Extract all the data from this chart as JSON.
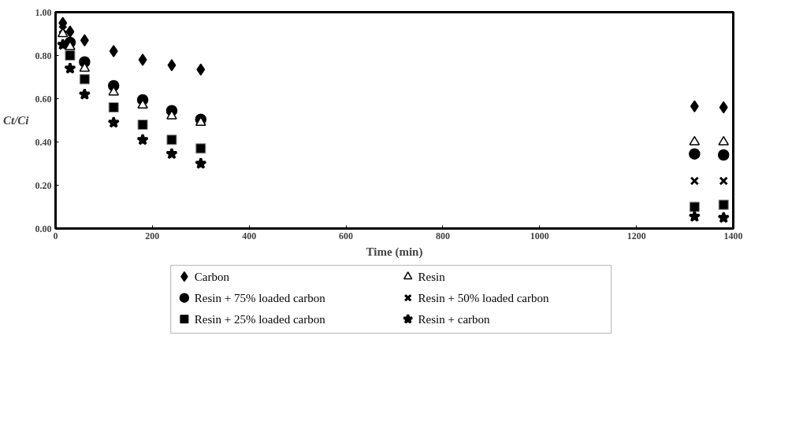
{
  "chart_data": {
    "type": "scatter",
    "xlabel": "Time (min)",
    "ylabel": "Ct/Ci",
    "x": [
      15,
      30,
      60,
      120,
      180,
      240,
      300,
      1320,
      1380
    ],
    "series": [
      {
        "name": "Carbon",
        "color": "#000000",
        "marker": "diamond",
        "values": [
          0.95,
          0.91,
          0.87,
          0.82,
          0.78,
          0.755,
          0.735,
          0.565,
          0.56
        ]
      },
      {
        "name": "Resin",
        "color": "#000000",
        "marker": "triangle",
        "values": [
          0.9,
          0.84,
          0.74,
          0.63,
          0.57,
          0.52,
          0.49,
          0.4,
          0.4
        ]
      },
      {
        "name": "Resin + 75% loaded carbon",
        "color": "#000000",
        "marker": "circle",
        "values": [
          null,
          0.86,
          0.77,
          0.66,
          0.595,
          0.545,
          0.505,
          0.345,
          0.34
        ]
      },
      {
        "name": "Resin + 50% loaded carbon",
        "color": "#000000",
        "marker": "cross",
        "values": [
          0.92,
          null,
          null,
          null,
          null,
          null,
          null,
          0.22,
          0.22
        ]
      },
      {
        "name": "Resin + 25% loaded carbon",
        "color": "#000000",
        "marker": "square",
        "values": [
          null,
          0.8,
          0.69,
          0.56,
          0.48,
          0.41,
          0.37,
          0.1,
          0.11
        ]
      },
      {
        "name": "Resin + carbon",
        "color": "#000000",
        "marker": "star",
        "values": [
          0.85,
          0.74,
          0.62,
          0.49,
          0.41,
          0.345,
          0.3,
          0.055,
          0.05
        ]
      }
    ],
    "xlim": [
      0,
      1400
    ],
    "xticks": [
      0,
      200,
      400,
      600,
      800,
      1000,
      1200,
      1400
    ],
    "ylim": [
      0,
      1
    ],
    "yticks": [
      {
        "value": 0,
        "label": "0.00"
      },
      {
        "value": 0.2,
        "label": "0.20"
      },
      {
        "value": 0.4,
        "label": "0.40"
      },
      {
        "value": 0.6,
        "label": "0.60"
      },
      {
        "value": 0.8,
        "label": "0.80"
      },
      {
        "value": 1.0,
        "label": "1.00"
      }
    ],
    "grid": false,
    "legend": "bottom"
  }
}
